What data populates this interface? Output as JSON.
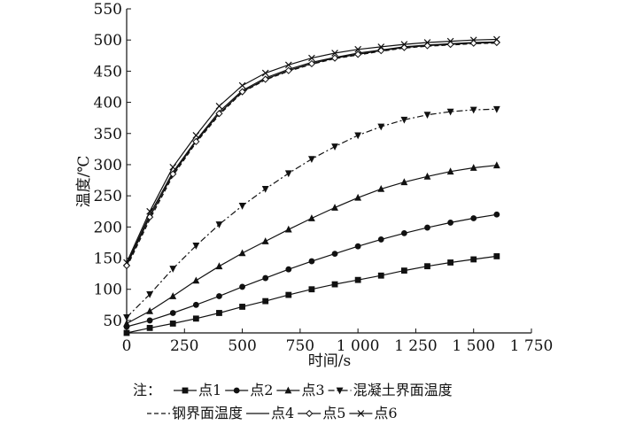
{
  "chart_data": {
    "type": "line",
    "xlabel": "时间/s",
    "ylabel": "温度/℃",
    "xlim": [
      0,
      1750
    ],
    "ylim": [
      30,
      550
    ],
    "x_ticks": [
      0,
      250,
      500,
      750,
      1000,
      1250,
      1500,
      1750
    ],
    "x_tick_labels": [
      "0",
      "250",
      "500",
      "750",
      "1 000",
      "1 250",
      "1 500",
      "1 750"
    ],
    "y_ticks": [
      50,
      100,
      150,
      200,
      250,
      300,
      350,
      400,
      450,
      500,
      550
    ],
    "y_tick_labels": [
      "50",
      "100",
      "150",
      "200",
      "250",
      "300",
      "350",
      "400",
      "450",
      "500",
      "550"
    ],
    "grid": false,
    "legend_prefix": "注：",
    "legend_position": "bottom",
    "x": [
      0,
      100,
      200,
      300,
      400,
      500,
      600,
      700,
      800,
      900,
      1000,
      1100,
      1200,
      1300,
      1400,
      1500,
      1600
    ],
    "series": [
      {
        "name": "点1",
        "marker": "square",
        "dash": "solid",
        "values": [
          30,
          38,
          45,
          53,
          62,
          72,
          81,
          91,
          100,
          108,
          115,
          122,
          130,
          137,
          143,
          148,
          153
        ]
      },
      {
        "name": "点2",
        "marker": "circle",
        "dash": "solid",
        "values": [
          40,
          50,
          62,
          75,
          89,
          104,
          118,
          132,
          145,
          157,
          169,
          180,
          190,
          199,
          207,
          214,
          220
        ]
      },
      {
        "name": "点3",
        "marker": "triangle-up",
        "dash": "solid",
        "values": [
          45,
          65,
          89,
          114,
          137,
          158,
          177,
          196,
          214,
          231,
          247,
          261,
          272,
          281,
          289,
          295,
          299
        ]
      },
      {
        "name": "混凝土界面温度",
        "marker": "triangle-down",
        "dash": "dashdot",
        "values": [
          55,
          92,
          133,
          170,
          204,
          234,
          261,
          286,
          309,
          329,
          347,
          361,
          372,
          380,
          385,
          388,
          389
        ]
      },
      {
        "name": "钢界面温度",
        "marker": "none",
        "dash": "dashed",
        "values": [
          135,
          212,
          282,
          335,
          380,
          416,
          436,
          450,
          461,
          470,
          476,
          482,
          487,
          490,
          492,
          494,
          495
        ]
      },
      {
        "name": "点4",
        "marker": "none",
        "dash": "solid",
        "values": [
          140,
          220,
          288,
          339,
          385,
          419,
          439,
          453,
          464,
          472,
          479,
          484,
          489,
          492,
          494,
          496,
          497
        ]
      },
      {
        "name": "点5",
        "marker": "diamond-open",
        "dash": "solid",
        "values": [
          138,
          216,
          285,
          337,
          382,
          417,
          437,
          451,
          462,
          471,
          477,
          483,
          488,
          491,
          493,
          495,
          496
        ]
      },
      {
        "name": "点6",
        "marker": "x",
        "dash": "solid",
        "values": [
          143,
          225,
          296,
          347,
          394,
          427,
          447,
          460,
          471,
          479,
          485,
          489,
          493,
          496,
          498,
          500,
          501
        ]
      }
    ]
  }
}
